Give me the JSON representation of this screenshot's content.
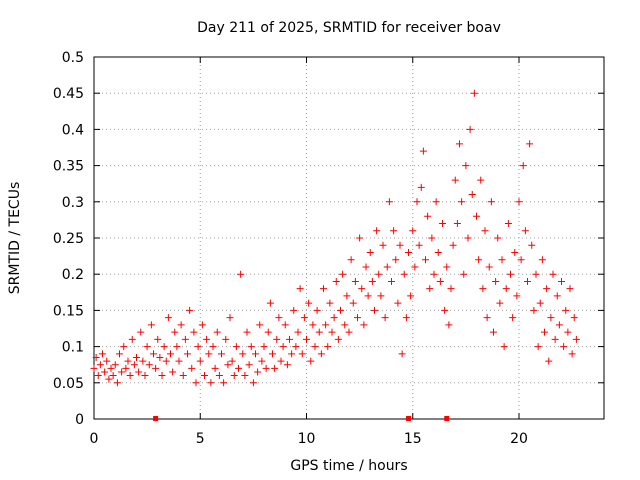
{
  "chart_data": {
    "type": "scatter",
    "title": "Day 211 of 2025, SRMTID for receiver boav",
    "xlabel": "GPS time / hours",
    "ylabel": "SRMTID / TECUs",
    "xlim": [
      0,
      24
    ],
    "ylim": [
      0,
      0.5
    ],
    "x_ticks": [
      0,
      5,
      10,
      15,
      20
    ],
    "x_tick_labels": [
      "0",
      "5",
      "10",
      "15",
      "20"
    ],
    "y_ticks": [
      0,
      0.05,
      0.1,
      0.15,
      0.2,
      0.25,
      0.3,
      0.35,
      0.4,
      0.45,
      0.5
    ],
    "y_tick_labels": [
      "0",
      "0.05",
      "0.1",
      "0.15",
      "0.2",
      "0.25",
      "0.3",
      "0.35",
      "0.4",
      "0.45",
      "0.5"
    ],
    "grid": true,
    "marker": "+",
    "color": "#ff0000",
    "series": [
      {
        "name": "SRMTID",
        "points": [
          [
            0.0,
            0.07
          ],
          [
            0.1,
            0.085
          ],
          [
            0.2,
            0.06
          ],
          [
            0.3,
            0.075
          ],
          [
            0.4,
            0.09
          ],
          [
            0.5,
            0.065
          ],
          [
            0.6,
            0.08
          ],
          [
            0.7,
            0.055
          ],
          [
            0.8,
            0.07
          ],
          [
            0.9,
            0.06
          ],
          [
            1.0,
            0.075
          ],
          [
            1.1,
            0.05
          ],
          [
            1.2,
            0.09
          ],
          [
            1.3,
            0.065
          ],
          [
            1.4,
            0.1
          ],
          [
            1.5,
            0.07
          ],
          [
            1.6,
            0.08
          ],
          [
            1.7,
            0.06
          ],
          [
            1.8,
            0.11
          ],
          [
            1.9,
            0.075
          ],
          [
            2.0,
            0.085
          ],
          [
            2.1,
            0.065
          ],
          [
            2.2,
            0.12
          ],
          [
            2.3,
            0.08
          ],
          [
            2.4,
            0.06
          ],
          [
            2.5,
            0.1
          ],
          [
            2.6,
            0.075
          ],
          [
            2.7,
            0.13
          ],
          [
            2.8,
            0.09
          ],
          [
            2.9,
            0.07
          ],
          [
            3.0,
            0.11
          ],
          [
            3.1,
            0.085
          ],
          [
            3.2,
            0.06
          ],
          [
            3.3,
            0.1
          ],
          [
            3.4,
            0.08
          ],
          [
            3.5,
            0.14
          ],
          [
            3.6,
            0.09
          ],
          [
            3.7,
            0.065
          ],
          [
            3.8,
            0.12
          ],
          [
            3.9,
            0.1
          ],
          [
            4.0,
            0.08
          ],
          [
            4.1,
            0.13
          ],
          [
            4.2,
            0.06
          ],
          [
            4.3,
            0.11
          ],
          [
            4.4,
            0.09
          ],
          [
            4.5,
            0.15
          ],
          [
            4.6,
            0.07
          ],
          [
            4.7,
            0.12
          ],
          [
            4.8,
            0.05
          ],
          [
            4.9,
            0.1
          ],
          [
            5.0,
            0.08
          ],
          [
            5.1,
            0.13
          ],
          [
            5.2,
            0.06
          ],
          [
            5.3,
            0.11
          ],
          [
            5.4,
            0.09
          ],
          [
            5.5,
            0.05
          ],
          [
            5.6,
            0.1
          ],
          [
            5.7,
            0.07
          ],
          [
            5.8,
            0.12
          ],
          [
            5.9,
            0.06
          ],
          [
            6.0,
            0.09
          ],
          [
            6.1,
            0.05
          ],
          [
            6.2,
            0.11
          ],
          [
            6.3,
            0.075
          ],
          [
            6.4,
            0.14
          ],
          [
            6.5,
            0.08
          ],
          [
            6.6,
            0.06
          ],
          [
            6.7,
            0.1
          ],
          [
            6.8,
            0.07
          ],
          [
            6.9,
            0.2
          ],
          [
            7.0,
            0.09
          ],
          [
            7.1,
            0.06
          ],
          [
            7.2,
            0.12
          ],
          [
            7.3,
            0.075
          ],
          [
            7.4,
            0.1
          ],
          [
            7.5,
            0.05
          ],
          [
            7.6,
            0.09
          ],
          [
            7.7,
            0.065
          ],
          [
            7.8,
            0.13
          ],
          [
            7.9,
            0.08
          ],
          [
            8.0,
            0.1
          ],
          [
            8.1,
            0.07
          ],
          [
            8.2,
            0.12
          ],
          [
            8.3,
            0.16
          ],
          [
            8.4,
            0.09
          ],
          [
            8.5,
            0.07
          ],
          [
            8.6,
            0.11
          ],
          [
            8.7,
            0.14
          ],
          [
            8.8,
            0.08
          ],
          [
            8.9,
            0.1
          ],
          [
            9.0,
            0.13
          ],
          [
            9.1,
            0.075
          ],
          [
            9.2,
            0.11
          ],
          [
            9.3,
            0.09
          ],
          [
            9.4,
            0.15
          ],
          [
            9.5,
            0.1
          ],
          [
            9.6,
            0.12
          ],
          [
            9.7,
            0.18
          ],
          [
            9.8,
            0.09
          ],
          [
            9.9,
            0.14
          ],
          [
            10.0,
            0.11
          ],
          [
            10.1,
            0.16
          ],
          [
            10.2,
            0.08
          ],
          [
            10.3,
            0.13
          ],
          [
            10.4,
            0.1
          ],
          [
            10.5,
            0.15
          ],
          [
            10.6,
            0.12
          ],
          [
            10.7,
            0.09
          ],
          [
            10.8,
            0.18
          ],
          [
            10.9,
            0.13
          ],
          [
            11.0,
            0.1
          ],
          [
            11.1,
            0.16
          ],
          [
            11.2,
            0.12
          ],
          [
            11.3,
            0.14
          ],
          [
            11.4,
            0.19
          ],
          [
            11.5,
            0.11
          ],
          [
            11.6,
            0.15
          ],
          [
            11.7,
            0.2
          ],
          [
            11.8,
            0.13
          ],
          [
            11.9,
            0.17
          ],
          [
            12.0,
            0.12
          ],
          [
            12.1,
            0.22
          ],
          [
            12.2,
            0.16
          ],
          [
            12.3,
            0.19
          ],
          [
            12.4,
            0.14
          ],
          [
            12.5,
            0.25
          ],
          [
            12.6,
            0.18
          ],
          [
            12.7,
            0.13
          ],
          [
            12.8,
            0.21
          ],
          [
            12.9,
            0.17
          ],
          [
            13.0,
            0.23
          ],
          [
            13.1,
            0.19
          ],
          [
            13.2,
            0.15
          ],
          [
            13.3,
            0.26
          ],
          [
            13.4,
            0.2
          ],
          [
            13.5,
            0.17
          ],
          [
            13.6,
            0.24
          ],
          [
            13.7,
            0.14
          ],
          [
            13.8,
            0.21
          ],
          [
            13.9,
            0.3
          ],
          [
            14.0,
            0.19
          ],
          [
            14.1,
            0.26
          ],
          [
            14.2,
            0.22
          ],
          [
            14.3,
            0.16
          ],
          [
            14.4,
            0.24
          ],
          [
            14.5,
            0.09
          ],
          [
            14.6,
            0.2
          ],
          [
            14.7,
            0.14
          ],
          [
            14.8,
            0.23
          ],
          [
            14.9,
            0.17
          ],
          [
            15.0,
            0.26
          ],
          [
            15.1,
            0.21
          ],
          [
            15.2,
            0.3
          ],
          [
            15.3,
            0.24
          ],
          [
            15.4,
            0.32
          ],
          [
            15.5,
            0.37
          ],
          [
            15.6,
            0.22
          ],
          [
            15.7,
            0.28
          ],
          [
            15.8,
            0.18
          ],
          [
            15.9,
            0.25
          ],
          [
            16.0,
            0.2
          ],
          [
            16.1,
            0.3
          ],
          [
            16.2,
            0.23
          ],
          [
            16.3,
            0.19
          ],
          [
            16.4,
            0.27
          ],
          [
            16.5,
            0.15
          ],
          [
            16.6,
            0.21
          ],
          [
            16.7,
            0.13
          ],
          [
            16.8,
            0.18
          ],
          [
            16.9,
            0.24
          ],
          [
            17.0,
            0.33
          ],
          [
            17.1,
            0.27
          ],
          [
            17.2,
            0.38
          ],
          [
            17.3,
            0.3
          ],
          [
            17.4,
            0.2
          ],
          [
            17.5,
            0.35
          ],
          [
            17.6,
            0.25
          ],
          [
            17.7,
            0.4
          ],
          [
            17.8,
            0.31
          ],
          [
            17.9,
            0.45
          ],
          [
            18.0,
            0.28
          ],
          [
            18.1,
            0.22
          ],
          [
            18.2,
            0.33
          ],
          [
            18.3,
            0.18
          ],
          [
            18.4,
            0.26
          ],
          [
            18.5,
            0.14
          ],
          [
            18.6,
            0.21
          ],
          [
            18.7,
            0.3
          ],
          [
            18.8,
            0.12
          ],
          [
            18.9,
            0.19
          ],
          [
            19.0,
            0.25
          ],
          [
            19.1,
            0.16
          ],
          [
            19.2,
            0.22
          ],
          [
            19.3,
            0.1
          ],
          [
            19.4,
            0.18
          ],
          [
            19.5,
            0.27
          ],
          [
            19.6,
            0.2
          ],
          [
            19.7,
            0.14
          ],
          [
            19.8,
            0.23
          ],
          [
            19.9,
            0.17
          ],
          [
            20.0,
            0.3
          ],
          [
            20.1,
            0.22
          ],
          [
            20.2,
            0.35
          ],
          [
            20.3,
            0.26
          ],
          [
            20.4,
            0.19
          ],
          [
            20.5,
            0.38
          ],
          [
            20.6,
            0.24
          ],
          [
            20.7,
            0.15
          ],
          [
            20.8,
            0.2
          ],
          [
            20.9,
            0.1
          ],
          [
            21.0,
            0.16
          ],
          [
            21.1,
            0.22
          ],
          [
            21.2,
            0.12
          ],
          [
            21.3,
            0.18
          ],
          [
            21.4,
            0.08
          ],
          [
            21.5,
            0.14
          ],
          [
            21.6,
            0.2
          ],
          [
            21.7,
            0.11
          ],
          [
            21.8,
            0.17
          ],
          [
            21.9,
            0.13
          ],
          [
            22.0,
            0.19
          ],
          [
            22.1,
            0.1
          ],
          [
            22.2,
            0.15
          ],
          [
            22.3,
            0.12
          ],
          [
            22.4,
            0.18
          ],
          [
            22.5,
            0.09
          ],
          [
            22.6,
            0.14
          ],
          [
            22.7,
            0.11
          ]
        ]
      }
    ],
    "zero_markers_x": [
      2.9,
      14.8,
      16.6
    ]
  }
}
